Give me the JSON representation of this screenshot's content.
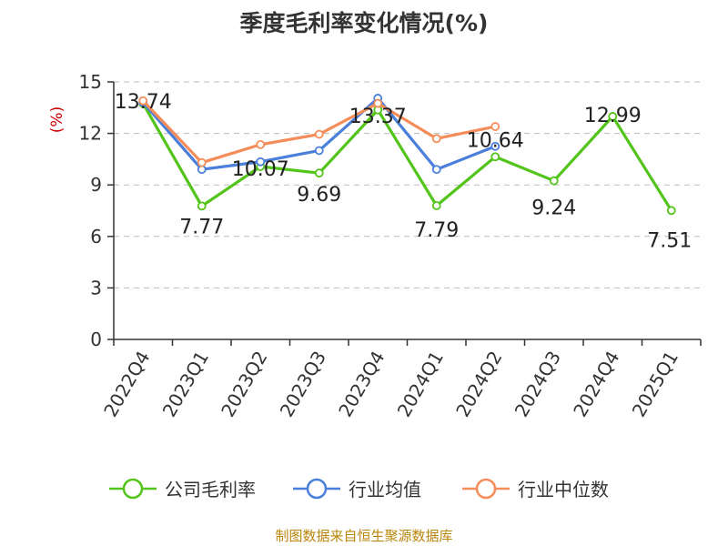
{
  "title": "季度毛利率变化情况(%)",
  "source": "制图数据来自恒生聚源数据库",
  "chart_data": {
    "type": "line",
    "title": "季度毛利率变化情况(%)",
    "ylabel": "(%)",
    "ylabel_color": "#cc0000",
    "ylim": [
      0,
      15
    ],
    "yticks": [
      0,
      3,
      6,
      9,
      12,
      15
    ],
    "grid": true,
    "legend_position": "bottom",
    "categories": [
      "2022Q4",
      "2023Q1",
      "2023Q2",
      "2023Q3",
      "2023Q4",
      "2024Q1",
      "2024Q2",
      "2024Q3",
      "2024Q4",
      "2025Q1"
    ],
    "series": [
      {
        "name": "公司毛利率",
        "color": "#52C41A",
        "values": [
          13.74,
          7.77,
          10.07,
          9.69,
          13.37,
          7.79,
          10.64,
          9.24,
          12.99,
          7.51
        ],
        "labels": [
          "13.74",
          "7.77",
          "10.07",
          "9.69",
          "13.37",
          "7.79",
          "10.64",
          "9.24",
          "12.99",
          "7.51"
        ]
      },
      {
        "name": "行业均值",
        "color": "#4A7FDB",
        "values": [
          13.8,
          9.9,
          10.35,
          11.0,
          14.05,
          9.9,
          11.25,
          null,
          null,
          null
        ]
      },
      {
        "name": "行业中位数",
        "color": "#F58D5A",
        "values": [
          13.9,
          10.3,
          11.35,
          11.95,
          13.75,
          11.7,
          12.4,
          null,
          null,
          null
        ]
      }
    ]
  }
}
